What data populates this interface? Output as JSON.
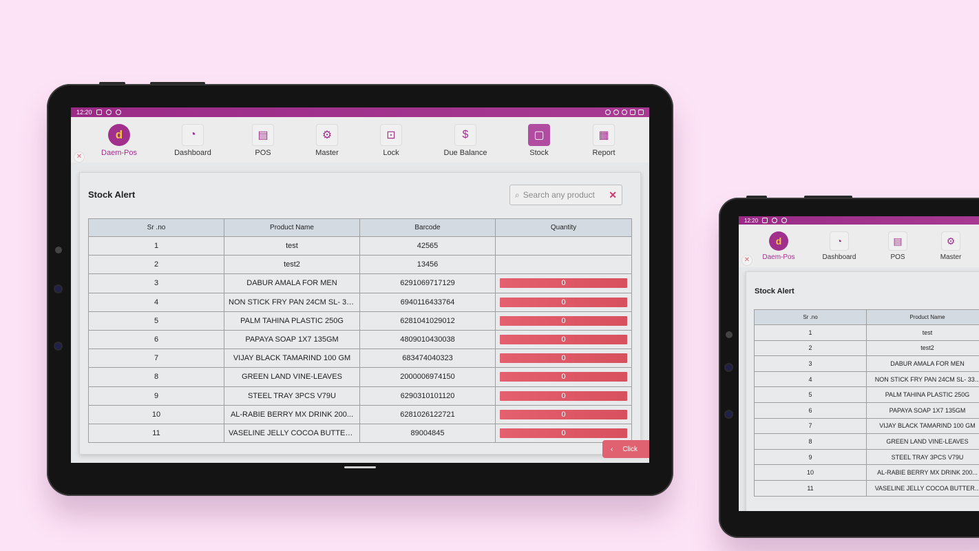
{
  "status": {
    "time": "12:20"
  },
  "nav": {
    "items": [
      {
        "label": "Daem-Pos",
        "icon": "d"
      },
      {
        "label": "Dashboard",
        "icon": "◔"
      },
      {
        "label": "POS",
        "icon": "▤"
      },
      {
        "label": "Master",
        "icon": "⚙"
      },
      {
        "label": "Lock",
        "icon": "🔒"
      },
      {
        "label": "Due Balance",
        "icon": "$"
      },
      {
        "label": "Stock",
        "icon": "▢"
      },
      {
        "label": "Report",
        "icon": "▦"
      }
    ]
  },
  "page": {
    "title": "Stock Alert",
    "search_placeholder": "Search any product",
    "click_label": "Click"
  },
  "table": {
    "headers": [
      "Sr .no",
      "Product Name",
      "Barcode",
      "Quantity"
    ],
    "rows": [
      [
        "1",
        "test",
        "42565",
        ""
      ],
      [
        "2",
        "test2",
        "13456",
        ""
      ],
      [
        "3",
        "DABUR AMALA FOR MEN",
        "6291069717129",
        "0"
      ],
      [
        "4",
        "NON STICK FRY PAN 24CM SL- 33...",
        "6940116433764",
        "0"
      ],
      [
        "5",
        "PALM TAHINA PLASTIC 250G",
        "6281041029012",
        "0"
      ],
      [
        "6",
        "PAPAYA SOAP 1X7 135GM",
        "4809010430038",
        "0"
      ],
      [
        "7",
        "VIJAY BLACK TAMARIND 100 GM",
        "683474040323",
        "0"
      ],
      [
        "8",
        "GREEN LAND VINE-LEAVES",
        "2000006974150",
        "0"
      ],
      [
        "9",
        "STEEL TRAY 3PCS V79U",
        "6290310101120",
        "0"
      ],
      [
        "10",
        "AL-RABIE BERRY MX DRINK 200...",
        "6281026122721",
        "0"
      ],
      [
        "11",
        "VASELINE JELLY COCOA BUTTER...",
        "89004845",
        "0"
      ]
    ]
  },
  "colors": {
    "accent": "#a1308c",
    "alert": "#e0616f",
    "status_bar": "#9a2a86"
  }
}
